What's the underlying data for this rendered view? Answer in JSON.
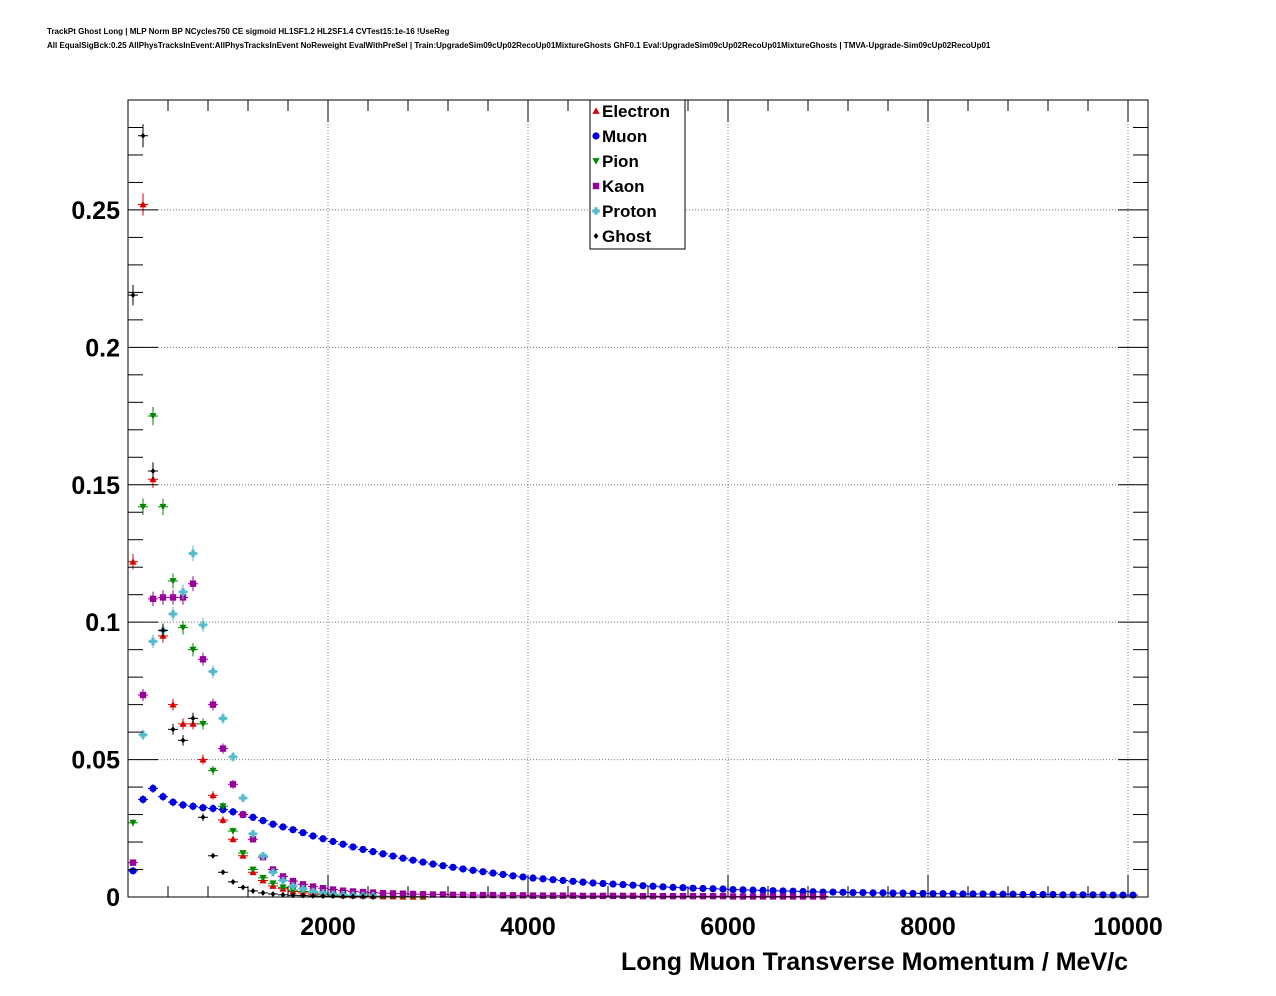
{
  "title_line1": "TrackPt Ghost Long | MLP Norm BP NCycles750 CE sigmoid HL1SF1.2 HL2SF1.4 CVTest15:1e-16 !UseReg",
  "title_line2": "All EqualSigBck:0.25 AllPhysTracksInEvent:AllPhysTracksInEvent NoReweight EvalWithPreSel | Train:UpgradeSim09cUp02RecoUp01MixtureGhosts GhF0.1 Eval:UpgradeSim09cUp02RecoUp01MixtureGhosts | TMVA-Upgrade-Sim09cUp02RecoUp01",
  "chart_data": {
    "type": "scatter",
    "title": "TrackPt Ghost Long",
    "xlabel": "Long Muon Transverse Momentum / MeV/c",
    "ylabel": "",
    "xlim": [
      0,
      10200
    ],
    "ylim": [
      0,
      0.29
    ],
    "x_ticks": [
      2000,
      4000,
      6000,
      8000,
      10000
    ],
    "x_tick_labels": [
      "2000",
      "4000",
      "6000",
      "8000",
      "10000"
    ],
    "y_ticks": [
      0,
      0.05,
      0.1,
      0.15,
      0.2,
      0.25
    ],
    "y_tick_labels": [
      "0",
      "0.05",
      "0.1",
      "0.15",
      "0.2",
      "0.25"
    ],
    "grid": true,
    "legend_position": "top-center",
    "series": [
      {
        "name": "Electron",
        "marker": "triangle-up",
        "color": "#dd0000",
        "x": [
          50,
          150,
          250,
          350,
          450,
          550,
          650,
          750,
          850,
          950,
          1050,
          1150,
          1250,
          1350,
          1450,
          1550,
          1650,
          1750,
          1850,
          1950,
          2050,
          2150,
          2250,
          2350,
          2450,
          2550,
          2650,
          2750,
          2850,
          2950
        ],
        "y": [
          0.122,
          0.252,
          0.152,
          0.095,
          0.07,
          0.063,
          0.063,
          0.05,
          0.037,
          0.028,
          0.021,
          0.015,
          0.009,
          0.006,
          0.004,
          0.003,
          0.002,
          0.0015,
          0.001,
          0.001,
          0.0008,
          0.0006,
          0.0005,
          0.0004,
          0.0003,
          0.0002,
          0.0002,
          0.0001,
          0.0001,
          0.0001
        ]
      },
      {
        "name": "Muon",
        "marker": "circle",
        "color": "#0000dd",
        "x": [
          50,
          150,
          250,
          350,
          450,
          550,
          650,
          750,
          850,
          950,
          1050,
          1150,
          1250,
          1350,
          1450,
          1550,
          1650,
          1750,
          1850,
          1950,
          2050,
          2150,
          2250,
          2350,
          2450,
          2550,
          2650,
          2750,
          2850,
          2950,
          3050,
          3150,
          3250,
          3350,
          3450,
          3550,
          3650,
          3750,
          3850,
          3950,
          4050,
          4150,
          4250,
          4350,
          4450,
          4550,
          4650,
          4750,
          4850,
          4950,
          5050,
          5150,
          5250,
          5350,
          5450,
          5550,
          5650,
          5750,
          5850,
          5950,
          6050,
          6150,
          6250,
          6350,
          6450,
          6550,
          6650,
          6750,
          6850,
          6950,
          7050,
          7150,
          7250,
          7350,
          7450,
          7550,
          7650,
          7750,
          7850,
          7950,
          8050,
          8150,
          8250,
          8350,
          8450,
          8550,
          8650,
          8750,
          8850,
          8950,
          9050,
          9150,
          9250,
          9350,
          9450,
          9550,
          9650,
          9750,
          9850,
          9950,
          10050
        ],
        "y": [
          0.0095,
          0.0355,
          0.0395,
          0.0365,
          0.0345,
          0.0335,
          0.033,
          0.0325,
          0.0322,
          0.0318,
          0.031,
          0.03,
          0.029,
          0.0278,
          0.0265,
          0.0255,
          0.0245,
          0.0234,
          0.0222,
          0.0212,
          0.0202,
          0.0192,
          0.0182,
          0.0173,
          0.0165,
          0.0157,
          0.0149,
          0.0141,
          0.0134,
          0.0127,
          0.012,
          0.0114,
          0.0108,
          0.0102,
          0.0097,
          0.0092,
          0.0087,
          0.0082,
          0.0077,
          0.0073,
          0.0069,
          0.0066,
          0.0063,
          0.006,
          0.0057,
          0.0054,
          0.0051,
          0.0049,
          0.0047,
          0.0045,
          0.0043,
          0.0041,
          0.0039,
          0.0037,
          0.0035,
          0.0034,
          0.0032,
          0.0031,
          0.003,
          0.0029,
          0.0027,
          0.0026,
          0.0025,
          0.0024,
          0.0023,
          0.0022,
          0.0021,
          0.002,
          0.0019,
          0.0018,
          0.0018,
          0.0017,
          0.0016,
          0.0016,
          0.0015,
          0.0015,
          0.0014,
          0.0014,
          0.0013,
          0.0013,
          0.0012,
          0.0012,
          0.0012,
          0.0011,
          0.0011,
          0.0011,
          0.001,
          0.001,
          0.001,
          0.0009,
          0.0009,
          0.0009,
          0.0009,
          0.0008,
          0.0008,
          0.0008,
          0.0008,
          0.0008,
          0.0007,
          0.0007,
          0.0007
        ]
      },
      {
        "name": "Pion",
        "marker": "triangle-down",
        "color": "#008800",
        "x": [
          50,
          150,
          250,
          350,
          450,
          550,
          650,
          750,
          850,
          950,
          1050,
          1150,
          1250,
          1350,
          1450,
          1550,
          1650,
          1750,
          1850,
          1950,
          2050,
          2150,
          2250,
          2350,
          2450,
          2550,
          2650,
          2750,
          2850,
          2950
        ],
        "y": [
          0.027,
          0.142,
          0.175,
          0.142,
          0.115,
          0.098,
          0.09,
          0.063,
          0.046,
          0.033,
          0.024,
          0.016,
          0.01,
          0.007,
          0.005,
          0.0035,
          0.0025,
          0.002,
          0.0015,
          0.001,
          0.0008,
          0.0006,
          0.0005,
          0.0004,
          0.0003,
          0.0003,
          0.0002,
          0.0002,
          0.0001,
          0.0001
        ]
      },
      {
        "name": "Kaon",
        "marker": "square",
        "color": "#990099",
        "x": [
          50,
          150,
          250,
          350,
          450,
          550,
          650,
          750,
          850,
          950,
          1050,
          1150,
          1250,
          1350,
          1450,
          1550,
          1650,
          1750,
          1850,
          1950,
          2050,
          2150,
          2250,
          2350,
          2450,
          2550,
          2650,
          2750,
          2850,
          2950,
          3050,
          3150,
          3250,
          3350,
          3450,
          3550,
          3650,
          3750,
          3850,
          3950,
          4050,
          4150,
          4250,
          4350,
          4450,
          4550,
          4650,
          4750,
          4850,
          4950,
          5050,
          5150,
          5250,
          5350,
          5450,
          5550,
          5650,
          5750,
          5850,
          5950,
          6050,
          6150,
          6250,
          6350,
          6450,
          6550,
          6650,
          6750,
          6850,
          6950
        ],
        "y": [
          0.0125,
          0.0735,
          0.1085,
          0.109,
          0.109,
          0.109,
          0.114,
          0.0865,
          0.07,
          0.054,
          0.041,
          0.03,
          0.021,
          0.0145,
          0.01,
          0.0075,
          0.0058,
          0.0046,
          0.0038,
          0.0032,
          0.0027,
          0.0023,
          0.002,
          0.0018,
          0.0016,
          0.0014,
          0.0013,
          0.0012,
          0.0011,
          0.001,
          0.0009,
          0.0009,
          0.0008,
          0.0008,
          0.0007,
          0.0007,
          0.0007,
          0.0006,
          0.0006,
          0.0006,
          0.0005,
          0.0005,
          0.0005,
          0.0005,
          0.0005,
          0.0004,
          0.0004,
          0.0004,
          0.0004,
          0.0004,
          0.0004,
          0.0003,
          0.0003,
          0.0003,
          0.0003,
          0.0003,
          0.0003,
          0.0003,
          0.0003,
          0.0003,
          0.0002,
          0.0002,
          0.0002,
          0.0002,
          0.0002,
          0.0002,
          0.0002,
          0.0002,
          0.0002,
          0.0002
        ]
      },
      {
        "name": "Proton",
        "marker": "cross",
        "color": "#55bbcc",
        "x": [
          150,
          250,
          350,
          450,
          550,
          650,
          750,
          850,
          950,
          1050,
          1150,
          1250,
          1350,
          1450,
          1550,
          1650,
          1750,
          1850,
          1950,
          2050,
          2150,
          2250,
          2350,
          2450
        ],
        "y": [
          0.059,
          0.093,
          0.097,
          0.103,
          0.111,
          0.125,
          0.099,
          0.082,
          0.065,
          0.051,
          0.036,
          0.023,
          0.015,
          0.009,
          0.006,
          0.004,
          0.003,
          0.002,
          0.0015,
          0.001,
          0.0008,
          0.0006,
          0.0005,
          0.0004
        ]
      },
      {
        "name": "Ghost",
        "marker": "diamond",
        "color": "#000000",
        "x": [
          50,
          150,
          250,
          350,
          450,
          550,
          650,
          750,
          850,
          950,
          1050,
          1150,
          1250,
          1350,
          1450,
          1550,
          1650,
          1750,
          1850,
          1950,
          2050,
          2150,
          2250,
          2350,
          2450
        ],
        "y": [
          0.219,
          0.277,
          0.155,
          0.097,
          0.061,
          0.057,
          0.065,
          0.029,
          0.015,
          0.009,
          0.0055,
          0.0035,
          0.0022,
          0.0015,
          0.0011,
          0.0008,
          0.0006,
          0.0005,
          0.0004,
          0.0003,
          0.0003,
          0.0002,
          0.0002,
          0.0002,
          0.0001
        ]
      }
    ]
  }
}
